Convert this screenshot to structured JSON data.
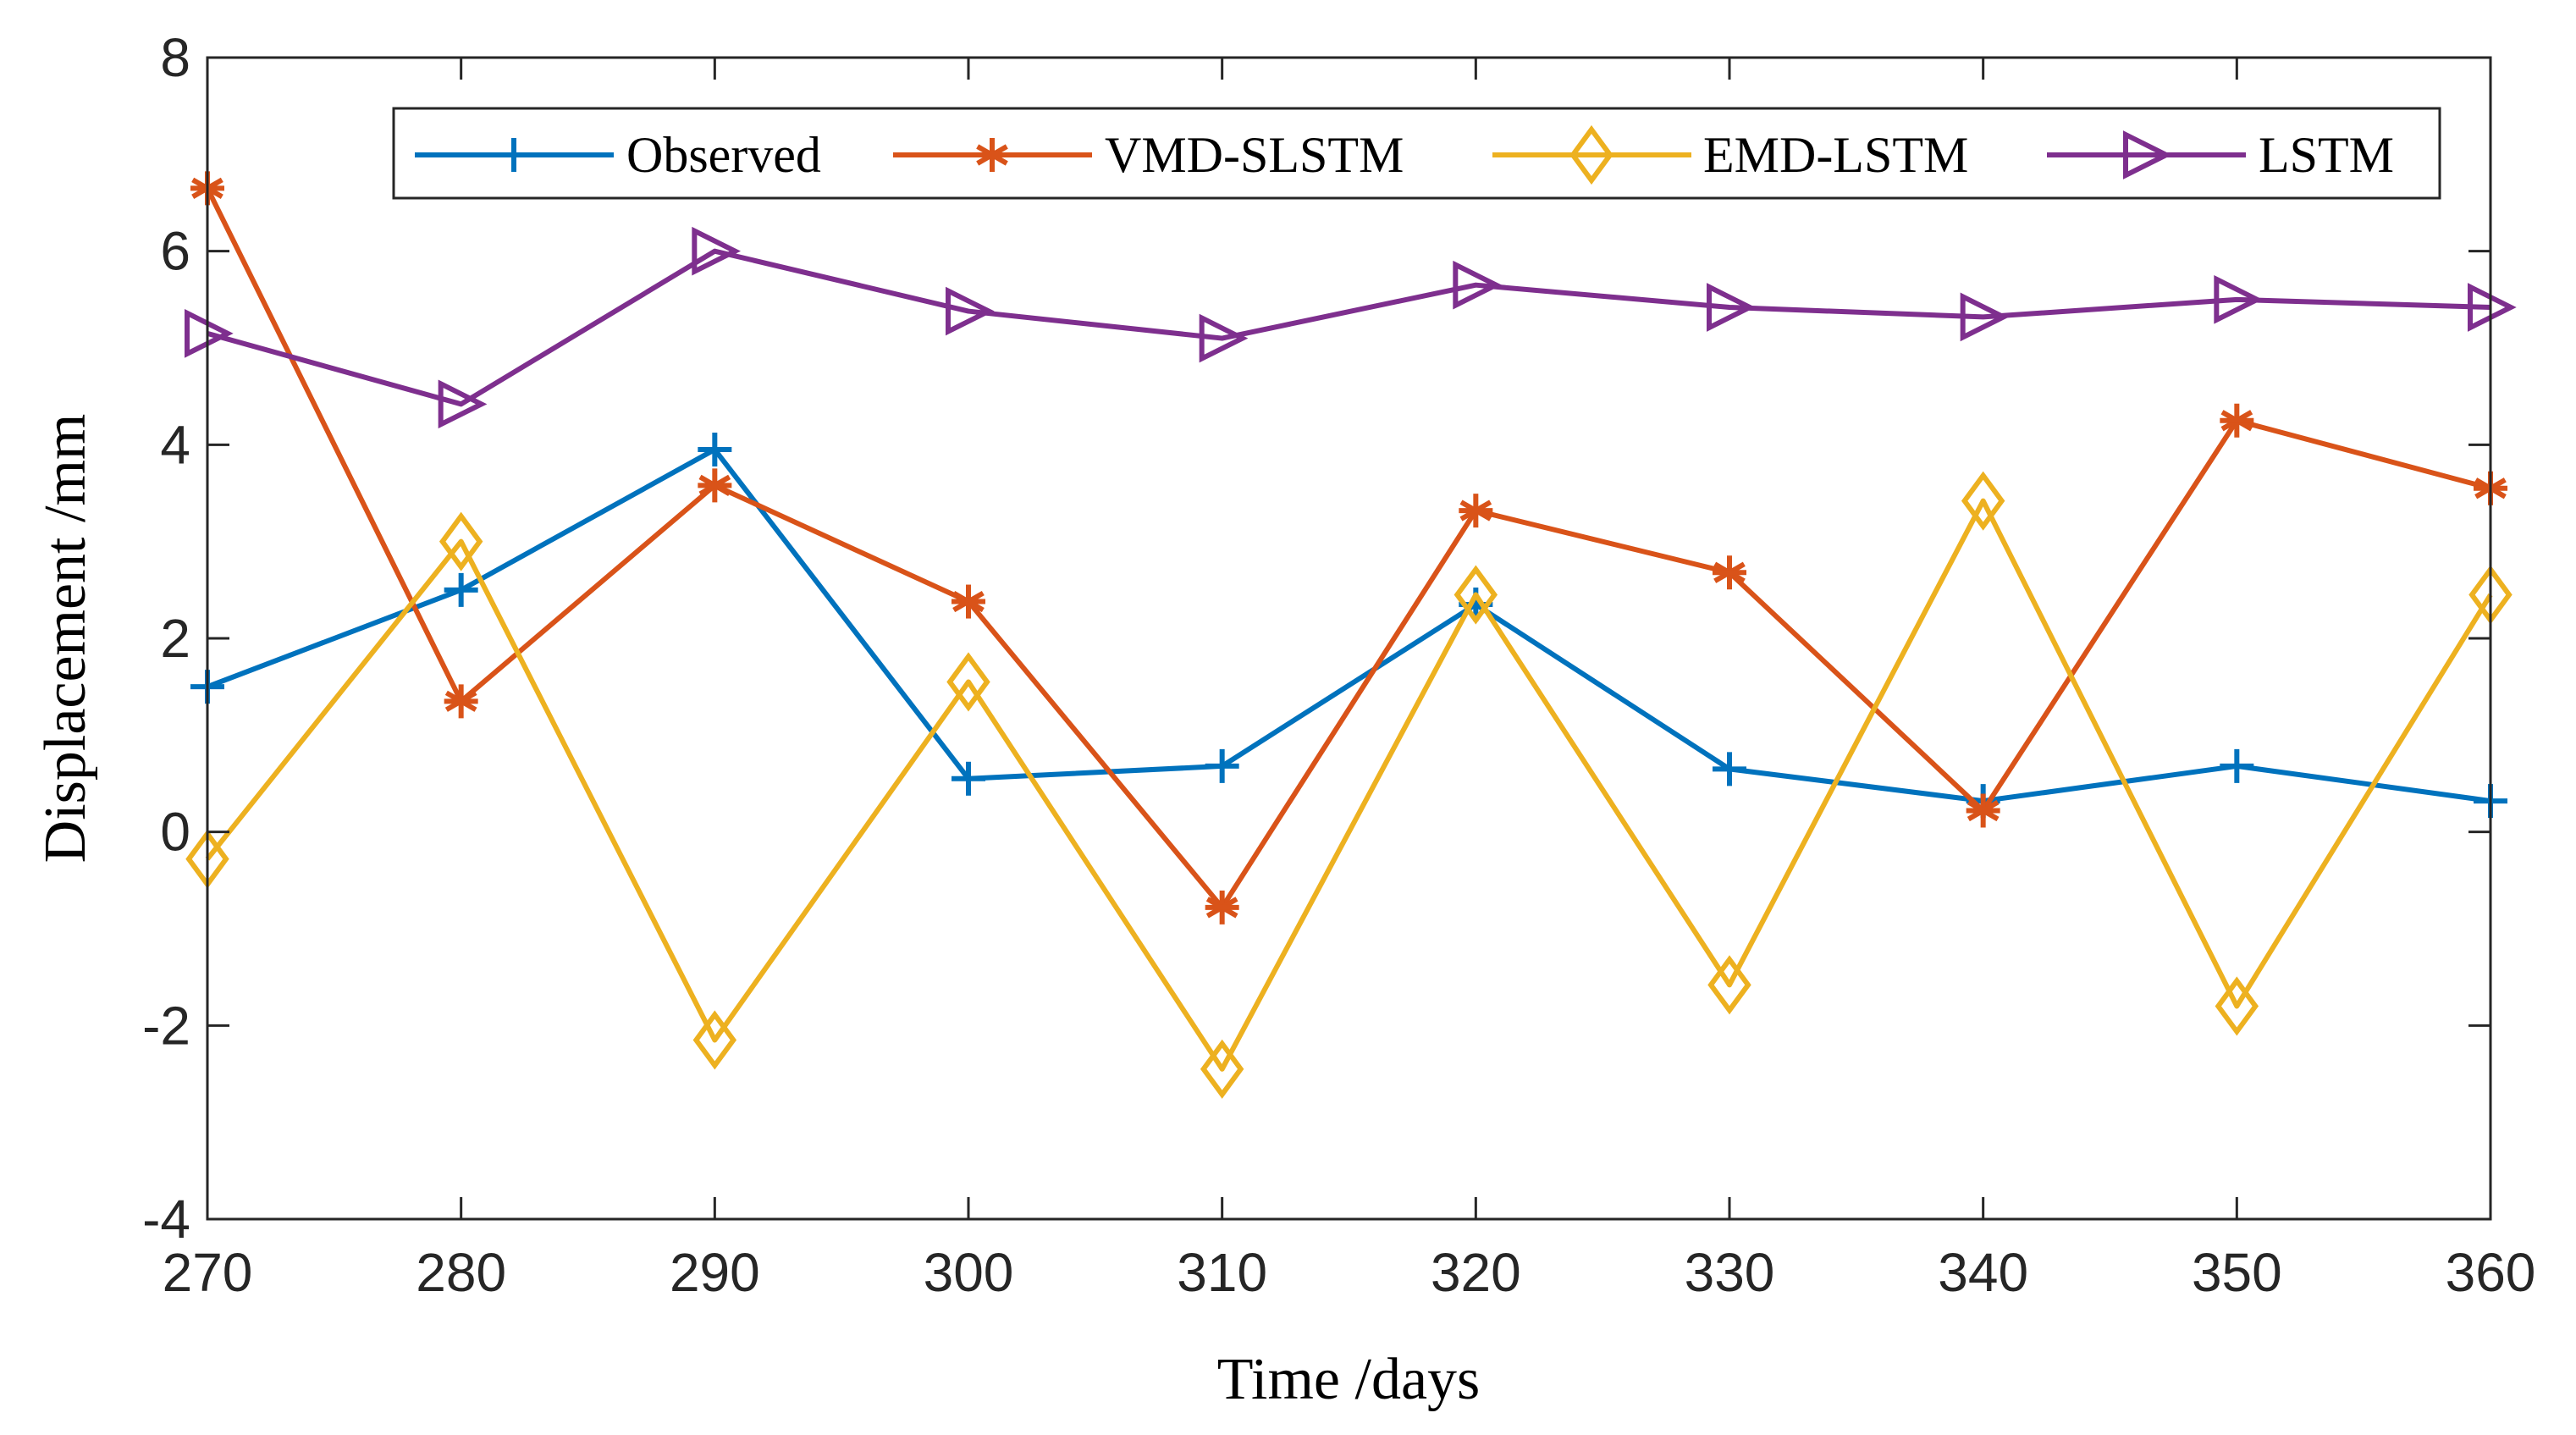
{
  "chart_data": {
    "type": "line",
    "title": "",
    "xlabel": "Time /days",
    "ylabel": "Displacement /mm",
    "xlim": [
      270,
      360
    ],
    "ylim": [
      -4,
      8
    ],
    "xticks": [
      270,
      280,
      290,
      300,
      310,
      320,
      330,
      340,
      350,
      360
    ],
    "yticks": [
      -4,
      -2,
      0,
      2,
      4,
      6,
      8
    ],
    "x": [
      270,
      280,
      290,
      300,
      310,
      320,
      330,
      340,
      350,
      360
    ],
    "grid": false,
    "legend_position": "top",
    "series": [
      {
        "name": "Observed",
        "color": "#0072BD",
        "marker": "plus",
        "values": [
          1.5,
          2.5,
          3.95,
          0.55,
          0.68,
          2.35,
          0.65,
          0.32,
          0.68,
          0.32
        ]
      },
      {
        "name": "VMD-SLSTM",
        "color": "#D95319",
        "marker": "asterisk",
        "values": [
          6.65,
          1.35,
          3.58,
          2.38,
          -0.78,
          3.32,
          2.68,
          0.22,
          4.25,
          3.55
        ]
      },
      {
        "name": "EMD-LSTM",
        "color": "#EDB120",
        "marker": "diamond",
        "values": [
          -0.28,
          3.0,
          -2.15,
          1.55,
          -2.45,
          2.45,
          -1.58,
          3.42,
          -1.8,
          2.45
        ]
      },
      {
        "name": "LSTM",
        "color": "#7E2F8E",
        "marker": "triangle-right",
        "values": [
          5.15,
          4.42,
          6.0,
          5.38,
          5.1,
          5.65,
          5.42,
          5.32,
          5.5,
          5.42
        ]
      }
    ]
  }
}
